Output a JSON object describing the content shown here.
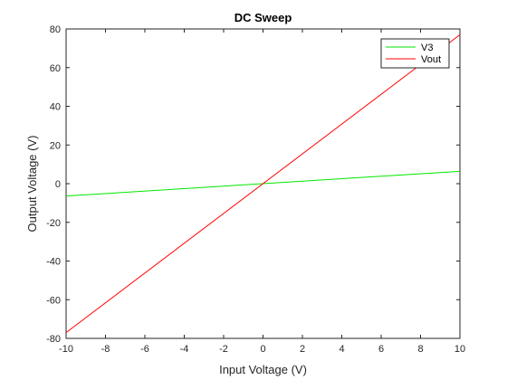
{
  "chart_data": {
    "type": "line",
    "title": "DC Sweep",
    "xlabel": "Input Voltage (V)",
    "ylabel": "Output Voltage (V)",
    "xlim": [
      -10,
      10
    ],
    "ylim": [
      -80,
      80
    ],
    "xticks": [
      -10,
      -8,
      -6,
      -4,
      -2,
      0,
      2,
      4,
      6,
      8,
      10
    ],
    "yticks": [
      -80,
      -60,
      -40,
      -20,
      0,
      20,
      40,
      60,
      80
    ],
    "grid": false,
    "legend_position": "top-right",
    "series": [
      {
        "name": "V3",
        "color": "#00e600",
        "x": [
          -10,
          10
        ],
        "y": [
          -6.4,
          6.4
        ]
      },
      {
        "name": "Vout",
        "color": "#ff0000",
        "x": [
          -10,
          10
        ],
        "y": [
          -77,
          77
        ]
      }
    ]
  }
}
